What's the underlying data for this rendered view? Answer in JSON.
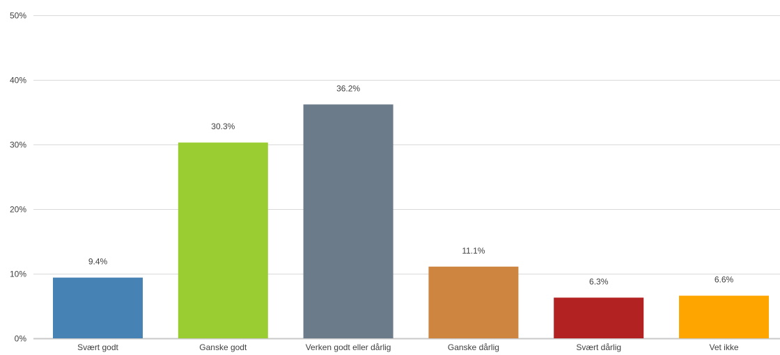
{
  "chart_data": {
    "type": "bar",
    "title": "",
    "xlabel": "",
    "ylabel": "",
    "ylim": [
      0,
      50
    ],
    "yticks": [
      0,
      10,
      20,
      30,
      40,
      50
    ],
    "ytick_suffix": "%",
    "grid": true,
    "categories": [
      "Svært godt",
      "Ganske godt",
      "Verken godt eller dårlig",
      "Ganske dårlig",
      "Svært dårlig",
      "Vet ikke"
    ],
    "values": [
      9.4,
      30.3,
      36.2,
      11.1,
      6.3,
      6.6
    ],
    "data_labels": [
      "9.4%",
      "30.3%",
      "36.2%",
      "11.1%",
      "6.3%",
      "6.6%"
    ],
    "colors": [
      "#4682B4",
      "#9ACD32",
      "#6B7B8A",
      "#CD853F",
      "#B22222",
      "#FFA500"
    ]
  }
}
